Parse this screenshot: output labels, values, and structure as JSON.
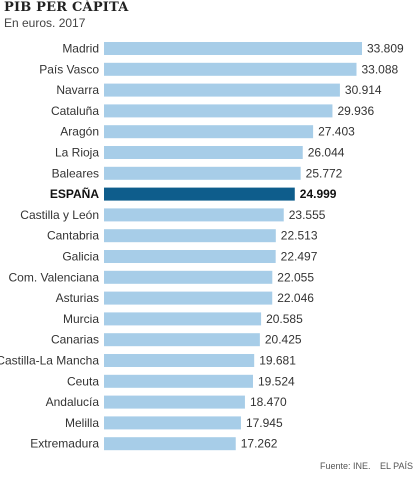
{
  "chart_data": {
    "type": "bar",
    "orientation": "horizontal",
    "title": "PIB PER CÁPITA",
    "subtitle": "En euros. 2017",
    "categories": [
      "Madrid",
      "País Vasco",
      "Navarra",
      "Cataluña",
      "Aragón",
      "La Rioja",
      "Baleares",
      "ESPAÑA",
      "Castilla y León",
      "Cantabria",
      "Galicia",
      "Com. Valenciana",
      "Asturias",
      "Murcia",
      "Canarias",
      "Castilla-La Mancha",
      "Ceuta",
      "Andalucía",
      "Melilla",
      "Extremadura"
    ],
    "values": [
      33809,
      33088,
      30914,
      29936,
      27403,
      26044,
      25772,
      24999,
      23555,
      22513,
      22497,
      22055,
      22046,
      20585,
      20425,
      19681,
      19524,
      18470,
      17945,
      17262
    ],
    "value_labels": [
      "33.809",
      "33.088",
      "30.914",
      "29.936",
      "27.403",
      "26.044",
      "25.772",
      "24.999",
      "23.555",
      "22.513",
      "22.497",
      "22.055",
      "22.046",
      "20.585",
      "20.425",
      "19.681",
      "19.524",
      "18.470",
      "17.945",
      "17.262"
    ],
    "highlight": "ESPAÑA",
    "xlim": [
      0,
      33809
    ],
    "grid": false,
    "legend": "none",
    "colors": {
      "bar": "#a7cde8",
      "highlight": "#0e5d8c"
    }
  },
  "source": "Fuente: INE.",
  "brand": "EL PAÍS"
}
